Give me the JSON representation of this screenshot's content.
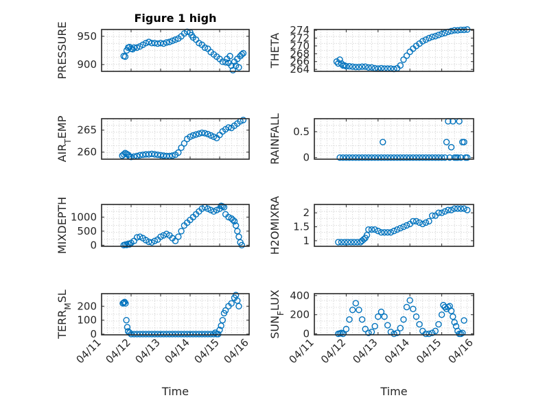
{
  "figure_title": "Figure 1 high",
  "chart_data": [
    {
      "type": "scatter",
      "ylabel": "PRESSURE",
      "ylim": [
        888,
        962
      ],
      "yticks": [
        900,
        950
      ],
      "xlim": [
        0,
        5
      ],
      "grid": true,
      "title": "Figure 1 high",
      "xlabel": "",
      "xticklabels": [],
      "x": [
        0.75,
        0.8,
        0.85,
        0.9,
        0.95,
        1.0,
        1.05,
        1.1,
        1.2,
        1.3,
        1.4,
        1.5,
        1.6,
        1.7,
        1.8,
        1.9,
        2.0,
        2.1,
        2.2,
        2.3,
        2.4,
        2.5,
        2.6,
        2.7,
        2.8,
        2.9,
        3.0,
        3.05,
        3.1,
        3.2,
        3.3,
        3.4,
        3.5,
        3.6,
        3.7,
        3.8,
        3.9,
        4.0,
        4.1,
        4.2,
        4.25,
        4.3,
        4.35,
        4.4,
        4.45,
        4.5,
        4.55,
        4.6,
        4.65,
        4.7,
        4.75,
        4.8
      ],
      "y": [
        915,
        914,
        925,
        930,
        931,
        928,
        927,
        930,
        930,
        932,
        935,
        938,
        940,
        938,
        938,
        937,
        938,
        937,
        939,
        940,
        942,
        944,
        946,
        950,
        955,
        958,
        957,
        952,
        948,
        944,
        938,
        935,
        930,
        928,
        922,
        918,
        914,
        910,
        905,
        904,
        910,
        903,
        915,
        898,
        890,
        905,
        898,
        910,
        895,
        915,
        918,
        920
      ]
    },
    {
      "type": "scatter",
      "ylabel": "THETA",
      "ylim": [
        263.5,
        274.2
      ],
      "yticks": [
        264,
        266,
        268,
        270,
        272,
        274
      ],
      "xlim": [
        0,
        5
      ],
      "grid": true,
      "xlabel": "",
      "xticklabels": [],
      "x": [
        0.7,
        0.75,
        0.8,
        0.85,
        0.9,
        0.95,
        1.0,
        1.1,
        1.2,
        1.3,
        1.4,
        1.5,
        1.6,
        1.7,
        1.8,
        1.9,
        2.0,
        2.1,
        2.2,
        2.3,
        2.4,
        2.5,
        2.6,
        2.7,
        2.8,
        2.9,
        3.0,
        3.1,
        3.2,
        3.3,
        3.4,
        3.5,
        3.6,
        3.7,
        3.8,
        3.9,
        4.0,
        4.1,
        4.2,
        4.3,
        4.4,
        4.5,
        4.6,
        4.7,
        4.8
      ],
      "y": [
        266,
        265.5,
        266.5,
        265.5,
        265,
        265,
        264.8,
        264.8,
        264.7,
        264.6,
        264.6,
        264.7,
        264.7,
        264.5,
        264.5,
        264.3,
        264.2,
        264.3,
        264.2,
        264.2,
        264.2,
        264.1,
        264.3,
        265,
        266.5,
        267.5,
        268.5,
        269.3,
        270,
        270.6,
        271.2,
        271.6,
        272,
        272.3,
        272.5,
        272.8,
        273.1,
        273.3,
        273.6,
        273.8,
        274,
        274,
        274.1,
        274.1,
        274.2
      ]
    },
    {
      "type": "scatter",
      "ylabel": "AIR_TEMP",
      "ylim": [
        258.4,
        267.6
      ],
      "yticks": [
        260,
        265
      ],
      "xlim": [
        0,
        5
      ],
      "grid": true,
      "xlabel": "",
      "xticklabels": [],
      "x": [
        0.7,
        0.75,
        0.8,
        0.85,
        0.9,
        0.95,
        1.0,
        1.1,
        1.2,
        1.3,
        1.4,
        1.5,
        1.6,
        1.7,
        1.8,
        1.9,
        2.0,
        2.1,
        2.2,
        2.3,
        2.4,
        2.5,
        2.6,
        2.7,
        2.8,
        2.9,
        3.0,
        3.1,
        3.2,
        3.3,
        3.4,
        3.5,
        3.6,
        3.7,
        3.8,
        3.9,
        4.0,
        4.1,
        4.2,
        4.3,
        4.4,
        4.5,
        4.6,
        4.7,
        4.8
      ],
      "y": [
        259.2,
        259.5,
        259.8,
        259.6,
        259.4,
        259,
        258.9,
        259.0,
        259.1,
        259.3,
        259.4,
        259.5,
        259.5,
        259.6,
        259.5,
        259.4,
        259.3,
        259.2,
        259.1,
        259.1,
        259.2,
        259.4,
        259.9,
        261,
        262,
        263,
        263.5,
        263.8,
        264,
        264.2,
        264.4,
        264.3,
        264.1,
        263.8,
        263.5,
        263.2,
        263.9,
        264.7,
        265.2,
        265.6,
        265.5,
        266,
        266.5,
        267,
        267.3
      ]
    },
    {
      "type": "scatter",
      "ylabel": "RAINFALL",
      "ylim": [
        -0.03,
        0.75
      ],
      "yticks": [
        0,
        0.5
      ],
      "xlim": [
        0,
        5
      ],
      "grid": true,
      "xlabel": "",
      "xticklabels": [],
      "x": [
        0.8,
        0.9,
        1.0,
        1.1,
        1.2,
        1.3,
        1.4,
        1.5,
        1.6,
        1.7,
        1.8,
        1.9,
        2.0,
        2.1,
        2.15,
        2.2,
        2.3,
        2.4,
        2.5,
        2.6,
        2.7,
        2.8,
        2.9,
        3.0,
        3.1,
        3.2,
        3.3,
        3.4,
        3.5,
        3.6,
        3.7,
        3.8,
        3.9,
        4.0,
        4.1,
        4.15,
        4.2,
        4.25,
        4.3,
        4.35,
        4.4,
        4.45,
        4.5,
        4.55,
        4.6,
        4.65,
        4.7,
        4.75,
        4.8
      ],
      "y": [
        0,
        0,
        0,
        0,
        0,
        0,
        0,
        0,
        0,
        0,
        0,
        0,
        0,
        0,
        0.3,
        0,
        0,
        0,
        0,
        0,
        0,
        0,
        0,
        0,
        0,
        0,
        0,
        0,
        0,
        0,
        0,
        0,
        0,
        0,
        0,
        0.3,
        0.7,
        0,
        0.2,
        0.7,
        0,
        0,
        0,
        0.7,
        0,
        0.3,
        0.3,
        0,
        0
      ]
    },
    {
      "type": "scatter",
      "ylabel": "MIXDEPTH",
      "ylim": [
        -40,
        1450
      ],
      "yticks": [
        0,
        500,
        1000
      ],
      "xlim": [
        0,
        5
      ],
      "grid": true,
      "xlabel": "",
      "xticklabels": [],
      "x": [
        0.75,
        0.8,
        0.85,
        0.9,
        0.95,
        1.0,
        1.1,
        1.2,
        1.3,
        1.4,
        1.5,
        1.6,
        1.7,
        1.8,
        1.9,
        2.0,
        2.1,
        2.2,
        2.3,
        2.4,
        2.5,
        2.6,
        2.7,
        2.8,
        2.9,
        3.0,
        3.1,
        3.2,
        3.3,
        3.4,
        3.5,
        3.6,
        3.7,
        3.8,
        3.9,
        4.0,
        4.05,
        4.1,
        4.15,
        4.2,
        4.3,
        4.4,
        4.45,
        4.5,
        4.55,
        4.6,
        4.65,
        4.7,
        4.75
      ],
      "y": [
        0,
        20,
        10,
        50,
        30,
        80,
        150,
        280,
        300,
        250,
        180,
        120,
        100,
        150,
        200,
        300,
        350,
        400,
        350,
        250,
        150,
        300,
        500,
        700,
        800,
        900,
        1000,
        1100,
        1200,
        1300,
        1350,
        1300,
        1250,
        1200,
        1250,
        1300,
        1400,
        1380,
        1350,
        1100,
        1000,
        950,
        900,
        850,
        700,
        500,
        300,
        100,
        0
      ]
    },
    {
      "type": "scatter",
      "ylabel": "H2OMIXRA",
      "ylim": [
        0.8,
        2.3
      ],
      "yticks": [
        1,
        1.5,
        2
      ],
      "xlim": [
        0,
        5
      ],
      "grid": true,
      "xlabel": "",
      "xticklabels": [],
      "x": [
        0.75,
        0.85,
        0.95,
        1.05,
        1.15,
        1.25,
        1.35,
        1.45,
        1.5,
        1.55,
        1.6,
        1.65,
        1.7,
        1.8,
        1.9,
        2.0,
        2.1,
        2.2,
        2.3,
        2.4,
        2.5,
        2.6,
        2.7,
        2.8,
        2.9,
        3.0,
        3.1,
        3.2,
        3.3,
        3.4,
        3.5,
        3.6,
        3.7,
        3.8,
        3.9,
        4.0,
        4.1,
        4.2,
        4.3,
        4.4,
        4.5,
        4.6,
        4.7,
        4.8
      ],
      "y": [
        0.95,
        0.95,
        0.95,
        0.95,
        0.95,
        0.95,
        0.95,
        0.95,
        1.0,
        1.05,
        1.1,
        1.2,
        1.4,
        1.4,
        1.4,
        1.35,
        1.3,
        1.3,
        1.3,
        1.3,
        1.35,
        1.4,
        1.45,
        1.5,
        1.55,
        1.6,
        1.7,
        1.7,
        1.65,
        1.6,
        1.65,
        1.7,
        1.9,
        1.9,
        2.0,
        2.0,
        2.05,
        2.1,
        2.1,
        2.15,
        2.15,
        2.15,
        2.15,
        2.1
      ]
    },
    {
      "type": "scatter",
      "ylabel": "TERR_MSL",
      "ylim": [
        -5,
        290
      ],
      "yticks": [
        0,
        100,
        200
      ],
      "xlim": [
        0,
        5
      ],
      "grid": true,
      "xlabel": "Time",
      "xticklabels": [
        "04/11",
        "04/12",
        "04/13",
        "04/14",
        "04/15",
        "04/16"
      ],
      "x": [
        0.72,
        0.75,
        0.78,
        0.81,
        0.84,
        0.87,
        0.9,
        0.95,
        1.0,
        1.1,
        1.2,
        1.3,
        1.4,
        1.5,
        1.6,
        1.7,
        1.8,
        1.9,
        2.0,
        2.1,
        2.2,
        2.3,
        2.4,
        2.5,
        2.6,
        2.7,
        2.8,
        2.9,
        3.0,
        3.1,
        3.2,
        3.3,
        3.4,
        3.5,
        3.6,
        3.7,
        3.8,
        3.85,
        3.9,
        3.95,
        4.0,
        4.05,
        4.1,
        4.15,
        4.2,
        4.3,
        4.4,
        4.5,
        4.55,
        4.6,
        4.65
      ],
      "y": [
        220,
        225,
        230,
        220,
        100,
        50,
        20,
        10,
        0,
        0,
        0,
        0,
        0,
        0,
        0,
        0,
        0,
        0,
        0,
        0,
        0,
        0,
        0,
        0,
        0,
        0,
        0,
        0,
        0,
        0,
        0,
        0,
        0,
        0,
        0,
        0,
        0,
        10,
        0,
        0,
        30,
        60,
        100,
        150,
        170,
        200,
        220,
        260,
        280,
        240,
        200
      ]
    },
    {
      "type": "scatter",
      "ylabel": "SUN_FLUX",
      "ylim": [
        -10,
        420
      ],
      "yticks": [
        0,
        200,
        400
      ],
      "xlim": [
        0,
        5
      ],
      "grid": true,
      "xlabel": "Time",
      "xticklabels": [
        "04/11",
        "04/12",
        "04/13",
        "04/14",
        "04/15",
        "04/16"
      ],
      "x": [
        0.75,
        0.8,
        0.85,
        0.9,
        1.0,
        1.1,
        1.2,
        1.3,
        1.4,
        1.5,
        1.6,
        1.7,
        1.8,
        1.9,
        2.0,
        2.1,
        2.2,
        2.3,
        2.4,
        2.5,
        2.6,
        2.7,
        2.8,
        2.9,
        3.0,
        3.1,
        3.2,
        3.3,
        3.4,
        3.5,
        3.6,
        3.7,
        3.8,
        3.9,
        4.0,
        4.05,
        4.1,
        4.15,
        4.2,
        4.25,
        4.3,
        4.35,
        4.4,
        4.45,
        4.5,
        4.55,
        4.6,
        4.65,
        4.7
      ],
      "y": [
        0,
        5,
        10,
        0,
        50,
        150,
        250,
        320,
        250,
        150,
        50,
        10,
        20,
        80,
        180,
        230,
        180,
        90,
        20,
        0,
        10,
        60,
        150,
        280,
        350,
        260,
        180,
        100,
        30,
        0,
        0,
        10,
        30,
        100,
        200,
        300,
        280,
        260,
        280,
        290,
        240,
        180,
        120,
        80,
        30,
        0,
        0,
        10,
        140
      ]
    }
  ]
}
